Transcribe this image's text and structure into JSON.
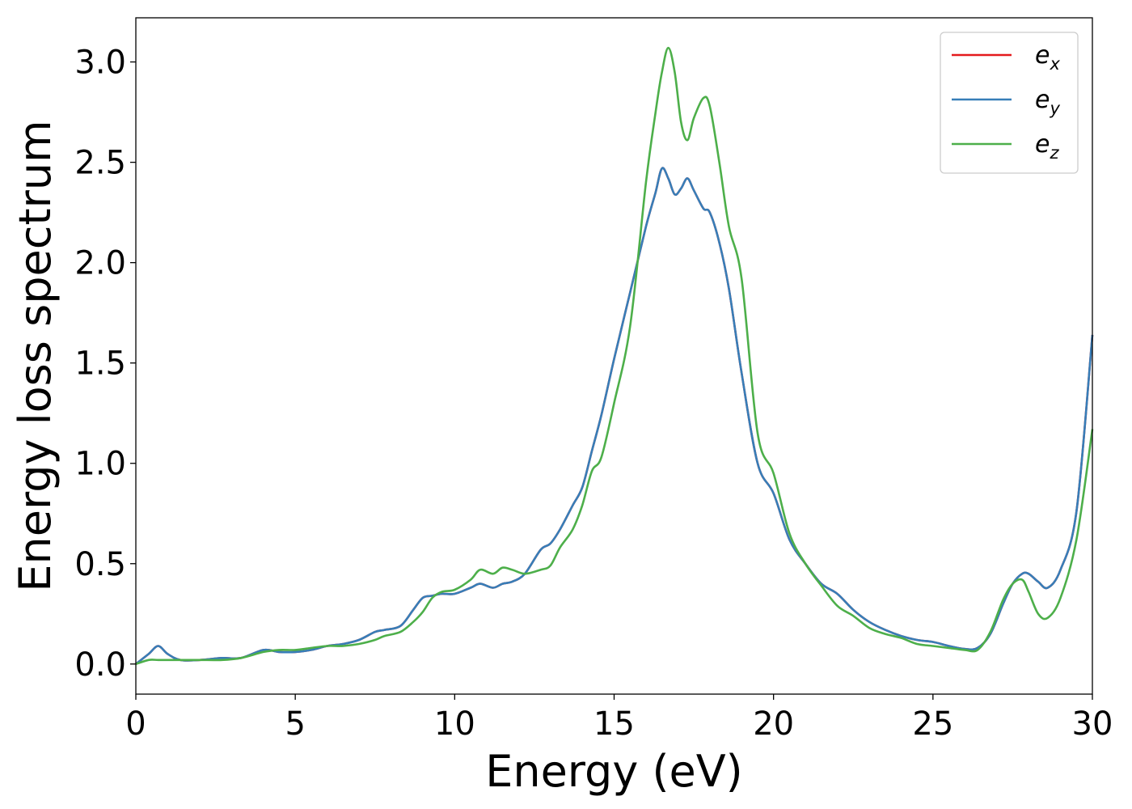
{
  "chart_data": {
    "type": "line",
    "title": "",
    "xlabel": "Energy (eV)",
    "ylabel": "Energy loss spectrum",
    "xlim": [
      0,
      30
    ],
    "ylim": [
      -0.15,
      3.22
    ],
    "xticks": [
      0,
      5,
      10,
      15,
      20,
      25,
      30
    ],
    "yticks": [
      0.0,
      0.5,
      1.0,
      1.5,
      2.0,
      2.5,
      3.0
    ],
    "ytick_labels": [
      "0.0",
      "0.5",
      "1.0",
      "1.5",
      "2.0",
      "2.5",
      "3.0"
    ],
    "grid": false,
    "legend_position": "top-right",
    "x": [
      0,
      0.4,
      0.7,
      1.0,
      1.4,
      2.0,
      2.7,
      3.3,
      4.0,
      4.5,
      5.0,
      5.5,
      6.0,
      6.5,
      7.0,
      7.5,
      7.8,
      8.3,
      8.7,
      9.0,
      9.3,
      9.6,
      10.0,
      10.5,
      10.8,
      11.2,
      11.5,
      11.8,
      12.2,
      12.7,
      13.0,
      13.3,
      13.7,
      14.0,
      14.3,
      14.6,
      15.0,
      15.5,
      16.0,
      16.3,
      16.5,
      16.7,
      16.9,
      17.1,
      17.3,
      17.5,
      17.8,
      18.0,
      18.3,
      18.6,
      19.0,
      19.5,
      20.0,
      20.5,
      21.0,
      21.5,
      22.0,
      22.5,
      23.0,
      23.5,
      24.0,
      24.5,
      25.0,
      25.5,
      26.0,
      26.4,
      26.8,
      27.2,
      27.5,
      27.8,
      28.0,
      28.3,
      28.6,
      29.0,
      29.5,
      30.0
    ],
    "series": [
      {
        "name": "e_x",
        "color": "#e41a1c",
        "values": [
          0.0,
          0.05,
          0.09,
          0.05,
          0.02,
          0.02,
          0.03,
          0.03,
          0.07,
          0.06,
          0.06,
          0.07,
          0.09,
          0.1,
          0.12,
          0.16,
          0.17,
          0.19,
          0.27,
          0.33,
          0.34,
          0.35,
          0.35,
          0.38,
          0.4,
          0.38,
          0.4,
          0.41,
          0.45,
          0.57,
          0.6,
          0.67,
          0.79,
          0.88,
          1.06,
          1.24,
          1.52,
          1.85,
          2.18,
          2.35,
          2.47,
          2.42,
          2.34,
          2.37,
          2.42,
          2.36,
          2.27,
          2.25,
          2.1,
          1.87,
          1.45,
          1.0,
          0.85,
          0.62,
          0.5,
          0.4,
          0.35,
          0.27,
          0.21,
          0.17,
          0.14,
          0.12,
          0.11,
          0.09,
          0.075,
          0.08,
          0.15,
          0.3,
          0.4,
          0.45,
          0.45,
          0.41,
          0.38,
          0.47,
          0.76,
          1.64
        ]
      },
      {
        "name": "e_y",
        "color": "#377eb8",
        "values": [
          0.0,
          0.05,
          0.09,
          0.05,
          0.02,
          0.02,
          0.03,
          0.03,
          0.07,
          0.06,
          0.06,
          0.07,
          0.09,
          0.1,
          0.12,
          0.16,
          0.17,
          0.19,
          0.27,
          0.33,
          0.34,
          0.35,
          0.35,
          0.38,
          0.4,
          0.38,
          0.4,
          0.41,
          0.45,
          0.57,
          0.6,
          0.67,
          0.79,
          0.88,
          1.06,
          1.24,
          1.52,
          1.85,
          2.18,
          2.35,
          2.47,
          2.42,
          2.34,
          2.37,
          2.42,
          2.36,
          2.27,
          2.25,
          2.1,
          1.87,
          1.45,
          1.0,
          0.85,
          0.62,
          0.5,
          0.4,
          0.35,
          0.27,
          0.21,
          0.17,
          0.14,
          0.12,
          0.11,
          0.09,
          0.075,
          0.08,
          0.15,
          0.3,
          0.4,
          0.45,
          0.45,
          0.41,
          0.38,
          0.47,
          0.76,
          1.64
        ]
      },
      {
        "name": "e_z",
        "color": "#4daf4a",
        "values": [
          0.0,
          0.02,
          0.02,
          0.02,
          0.02,
          0.02,
          0.02,
          0.03,
          0.06,
          0.07,
          0.07,
          0.08,
          0.09,
          0.09,
          0.1,
          0.12,
          0.14,
          0.16,
          0.21,
          0.26,
          0.33,
          0.36,
          0.37,
          0.42,
          0.47,
          0.45,
          0.48,
          0.47,
          0.45,
          0.47,
          0.49,
          0.58,
          0.67,
          0.79,
          0.96,
          1.03,
          1.3,
          1.68,
          2.4,
          2.75,
          2.95,
          3.07,
          2.95,
          2.7,
          2.61,
          2.72,
          2.82,
          2.78,
          2.5,
          2.18,
          1.92,
          1.15,
          0.95,
          0.65,
          0.5,
          0.39,
          0.29,
          0.24,
          0.18,
          0.15,
          0.13,
          0.1,
          0.09,
          0.08,
          0.07,
          0.07,
          0.16,
          0.32,
          0.4,
          0.42,
          0.36,
          0.25,
          0.23,
          0.33,
          0.62,
          1.17
        ]
      }
    ]
  }
}
